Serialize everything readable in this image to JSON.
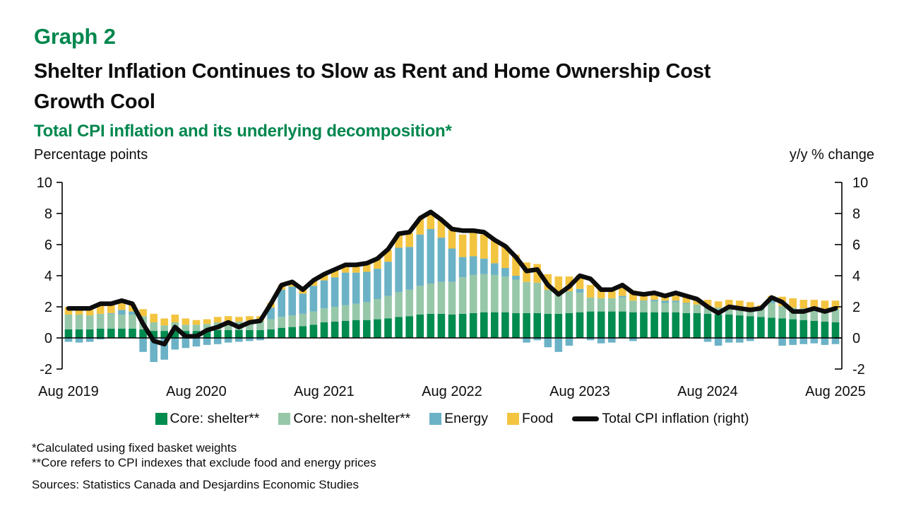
{
  "colors": {
    "brand_green": "#00874e",
    "core_shelter": "#008b4f",
    "core_non_shelter": "#96c7a8",
    "energy": "#6cb2c6",
    "food": "#f3c440",
    "total_line": "#0d0d0d"
  },
  "header": {
    "graph_label": "Graph 2",
    "title_line1": "Shelter Inflation Continues to Slow as Rent and Home Ownership Cost",
    "title_line2": "Growth Cool",
    "subtitle": "Total CPI inflation and its underlying decomposition*"
  },
  "footnotes": {
    "note1": "*Calculated using fixed basket weights",
    "note2": "**Core refers to CPI indexes that exclude food and energy prices",
    "sources": "Sources: Statistics Canada and Desjardins Economic Studies"
  },
  "chart_data": {
    "type": "bar",
    "subtype": "stacked-bars-with-line-overlay",
    "left_axis_label": "Percentage points",
    "right_axis_label": "y/y % change",
    "y_range": [
      -2,
      10
    ],
    "y_ticks": [
      10,
      8,
      6,
      4,
      2,
      0,
      "-2"
    ],
    "y_tick_values": [
      10,
      8,
      6,
      4,
      2,
      0,
      -2
    ],
    "grid": "zero-line-only",
    "legend_position": "bottom-center",
    "x_axis_labels": [
      {
        "label": "Aug 2019",
        "index": 0
      },
      {
        "label": "Aug 2020",
        "index": 12
      },
      {
        "label": "Aug 2021",
        "index": 24
      },
      {
        "label": "Aug 2022",
        "index": 36
      },
      {
        "label": "Aug 2023",
        "index": 48
      },
      {
        "label": "Aug 2024",
        "index": 60
      },
      {
        "label": "Aug 2025",
        "index": 72
      }
    ],
    "categories": [
      "Aug 2019",
      "Sep 2019",
      "Oct 2019",
      "Nov 2019",
      "Dec 2019",
      "Jan 2020",
      "Feb 2020",
      "Mar 2020",
      "Apr 2020",
      "May 2020",
      "Jun 2020",
      "Jul 2020",
      "Aug 2020",
      "Sep 2020",
      "Oct 2020",
      "Nov 2020",
      "Dec 2020",
      "Jan 2021",
      "Feb 2021",
      "Mar 2021",
      "Apr 2021",
      "May 2021",
      "Jun 2021",
      "Jul 2021",
      "Aug 2021",
      "Sep 2021",
      "Oct 2021",
      "Nov 2021",
      "Dec 2021",
      "Jan 2022",
      "Feb 2022",
      "Mar 2022",
      "Apr 2022",
      "May 2022",
      "Jun 2022",
      "Jul 2022",
      "Aug 2022",
      "Sep 2022",
      "Oct 2022",
      "Nov 2022",
      "Dec 2022",
      "Jan 2023",
      "Feb 2023",
      "Mar 2023",
      "Apr 2023",
      "May 2023",
      "Jun 2023",
      "Jul 2023",
      "Aug 2023",
      "Sep 2023",
      "Oct 2023",
      "Nov 2023",
      "Dec 2023",
      "Jan 2024",
      "Feb 2024",
      "Mar 2024",
      "Apr 2024",
      "May 2024",
      "Jun 2024",
      "Jul 2024",
      "Aug 2024",
      "Sep 2024",
      "Oct 2024",
      "Nov 2024",
      "Dec 2024",
      "Jan 2025",
      "Feb 2025",
      "Mar 2025",
      "Apr 2025",
      "May 2025",
      "Jun 2025",
      "Jul 2025",
      "Aug 2025"
    ],
    "series": [
      {
        "id": "core-shelter",
        "name": "Core: shelter**",
        "color": "#008b4f",
        "values": [
          0.55,
          0.55,
          0.55,
          0.6,
          0.6,
          0.6,
          0.6,
          0.55,
          0.45,
          0.45,
          0.45,
          0.45,
          0.45,
          0.45,
          0.5,
          0.5,
          0.5,
          0.5,
          0.5,
          0.55,
          0.65,
          0.7,
          0.75,
          0.85,
          1.0,
          1.05,
          1.1,
          1.15,
          1.15,
          1.2,
          1.25,
          1.35,
          1.4,
          1.5,
          1.55,
          1.55,
          1.5,
          1.55,
          1.6,
          1.65,
          1.65,
          1.65,
          1.6,
          1.6,
          1.6,
          1.55,
          1.55,
          1.6,
          1.65,
          1.7,
          1.7,
          1.7,
          1.7,
          1.65,
          1.65,
          1.65,
          1.65,
          1.65,
          1.6,
          1.6,
          1.55,
          1.5,
          1.5,
          1.45,
          1.4,
          1.35,
          1.3,
          1.25,
          1.2,
          1.15,
          1.1,
          1.05,
          1.0
        ]
      },
      {
        "id": "core-non-shelter",
        "name": "Core: non-shelter**",
        "color": "#96c7a8",
        "values": [
          0.95,
          0.95,
          0.9,
          0.95,
          0.95,
          0.9,
          0.9,
          0.85,
          0.55,
          0.35,
          0.55,
          0.4,
          0.4,
          0.45,
          0.5,
          0.55,
          0.55,
          0.6,
          0.6,
          0.65,
          0.7,
          0.75,
          0.8,
          0.85,
          0.9,
          0.95,
          1.0,
          1.05,
          1.15,
          1.3,
          1.45,
          1.6,
          1.7,
          1.85,
          1.95,
          2.05,
          2.1,
          2.35,
          2.45,
          2.45,
          2.4,
          2.3,
          2.15,
          2.0,
          1.95,
          1.55,
          1.45,
          1.4,
          1.25,
          0.9,
          0.85,
          0.85,
          0.9,
          0.75,
          0.7,
          0.7,
          0.6,
          0.65,
          0.6,
          0.55,
          0.5,
          0.45,
          0.5,
          0.55,
          0.55,
          0.5,
          0.95,
          0.8,
          0.75,
          0.75,
          0.8,
          0.8,
          0.85
        ]
      },
      {
        "id": "energy",
        "name": "Energy",
        "color": "#6cb2c6",
        "values": [
          -0.25,
          -0.3,
          -0.25,
          -0.1,
          0.05,
          0.3,
          0.2,
          -0.9,
          -1.55,
          -1.4,
          -0.75,
          -0.65,
          -0.55,
          -0.45,
          -0.4,
          -0.3,
          -0.25,
          -0.2,
          -0.15,
          0.75,
          1.75,
          1.85,
          1.3,
          1.65,
          1.8,
          1.9,
          2.1,
          2.0,
          1.95,
          1.95,
          2.2,
          2.85,
          2.75,
          3.3,
          3.5,
          2.85,
          2.15,
          1.3,
          1.2,
          1.0,
          0.75,
          0.55,
          0.25,
          -0.3,
          -0.15,
          -0.6,
          -0.9,
          -0.5,
          0.25,
          -0.15,
          -0.35,
          -0.3,
          0.1,
          -0.2,
          0.05,
          0.1,
          0.15,
          0.1,
          0.05,
          -0.05,
          -0.25,
          -0.5,
          -0.3,
          -0.3,
          -0.2,
          0.1,
          0.25,
          -0.5,
          -0.45,
          -0.4,
          -0.35,
          -0.45,
          -0.4
        ]
      },
      {
        "id": "food",
        "name": "Food",
        "color": "#f3c440",
        "values": [
          0.5,
          0.5,
          0.5,
          0.55,
          0.55,
          0.5,
          0.45,
          0.45,
          0.55,
          0.45,
          0.5,
          0.4,
          0.3,
          0.3,
          0.35,
          0.35,
          0.3,
          0.3,
          0.3,
          0.3,
          0.3,
          0.35,
          0.3,
          0.3,
          0.35,
          0.45,
          0.45,
          0.5,
          0.55,
          0.65,
          0.75,
          0.85,
          0.9,
          1.0,
          1.05,
          1.1,
          1.2,
          1.45,
          1.5,
          1.55,
          1.5,
          1.45,
          1.35,
          1.25,
          1.2,
          1.0,
          0.95,
          0.95,
          0.9,
          0.8,
          0.7,
          0.65,
          0.65,
          0.65,
          0.55,
          0.5,
          0.45,
          0.45,
          0.45,
          0.4,
          0.4,
          0.4,
          0.45,
          0.4,
          0.35,
          0.15,
          0.2,
          0.6,
          0.6,
          0.55,
          0.55,
          0.55,
          0.55
        ]
      }
    ],
    "line_series": {
      "id": "total-cpi",
      "name": "Total CPI inflation (right)",
      "color": "#0d0d0d",
      "axis": "right",
      "values": [
        1.9,
        1.9,
        1.9,
        2.2,
        2.2,
        2.4,
        2.2,
        0.9,
        -0.2,
        -0.4,
        0.7,
        0.1,
        0.1,
        0.5,
        0.7,
        1.0,
        0.7,
        1.0,
        1.1,
        2.2,
        3.4,
        3.6,
        3.1,
        3.7,
        4.1,
        4.4,
        4.7,
        4.7,
        4.8,
        5.1,
        5.7,
        6.7,
        6.8,
        7.7,
        8.1,
        7.6,
        7.0,
        6.9,
        6.9,
        6.8,
        6.3,
        5.9,
        5.2,
        4.3,
        4.4,
        3.4,
        2.8,
        3.3,
        4.0,
        3.8,
        3.1,
        3.1,
        3.4,
        2.9,
        2.8,
        2.9,
        2.7,
        2.9,
        2.7,
        2.5,
        2.0,
        1.6,
        2.0,
        1.9,
        1.8,
        1.9,
        2.6,
        2.3,
        1.7,
        1.7,
        1.9,
        1.7,
        1.9
      ]
    }
  }
}
